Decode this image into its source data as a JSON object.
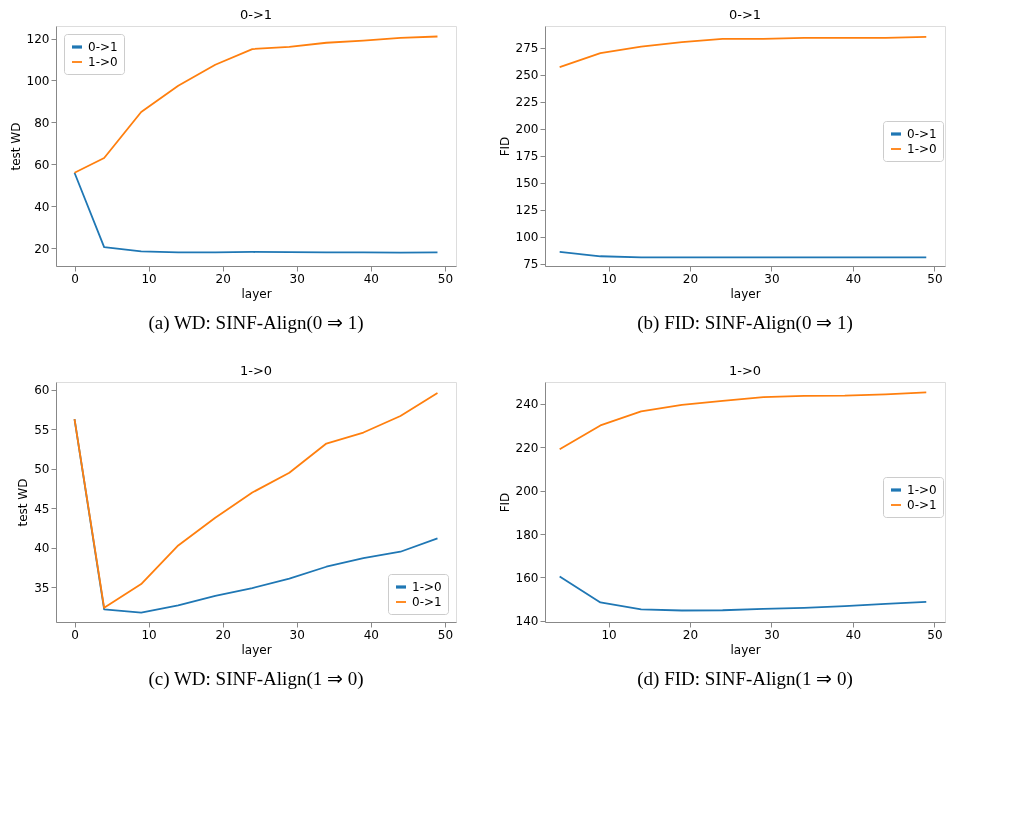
{
  "chart_data": [
    {
      "type": "line",
      "title": "0->1",
      "xlabel": "layer",
      "ylabel": "test WD",
      "xlim": [
        -2.5,
        51.5
      ],
      "ylim": [
        11.5,
        126
      ],
      "xticks": [
        0,
        10,
        20,
        30,
        40,
        50
      ],
      "yticks": [
        20,
        40,
        60,
        80,
        100,
        120
      ],
      "grid": false,
      "legend": "top left",
      "annotations": [
        "(a) WD: SINF-Align(0 ⇒ 1)"
      ],
      "series": [
        {
          "name": "0->1",
          "color": "#1f77b4",
          "x": [
            0,
            4,
            9,
            14,
            19,
            24,
            29,
            34,
            39,
            44,
            49
          ],
          "values": [
            56,
            20.5,
            18.5,
            18,
            18,
            18.2,
            18.1,
            18,
            18,
            17.9,
            18
          ]
        },
        {
          "name": "1->0",
          "color": "#ff7f0e",
          "x": [
            0,
            4,
            9,
            14,
            19,
            24,
            29,
            34,
            39,
            44,
            49
          ],
          "values": [
            56,
            63,
            85,
            97.5,
            107.5,
            115,
            116,
            118,
            119,
            120.3,
            121
          ]
        }
      ]
    },
    {
      "type": "line",
      "title": "0->1",
      "xlabel": "layer",
      "ylabel": "FID",
      "xlim": [
        2.2,
        51.3
      ],
      "ylim": [
        73,
        295
      ],
      "xticks": [
        10,
        20,
        30,
        40,
        50
      ],
      "yticks": [
        75,
        100,
        125,
        150,
        175,
        200,
        225,
        250,
        275
      ],
      "grid": false,
      "legend": "right",
      "annotations": [
        "(b) FID: SINF-Align(0 ⇒ 1)"
      ],
      "series": [
        {
          "name": "0->1",
          "color": "#1f77b4",
          "x": [
            4,
            9,
            14,
            19,
            24,
            29,
            34,
            39,
            44,
            49
          ],
          "values": [
            86,
            82,
            81,
            81,
            81,
            81,
            81,
            81,
            81,
            81
          ]
        },
        {
          "name": "1->0",
          "color": "#ff7f0e",
          "x": [
            4,
            9,
            14,
            19,
            24,
            29,
            34,
            39,
            44,
            49
          ],
          "values": [
            257,
            270,
            276,
            280,
            283,
            283,
            284,
            284,
            284,
            285
          ]
        }
      ]
    },
    {
      "type": "line",
      "title": "1->0",
      "xlabel": "layer",
      "ylabel": "test WD",
      "xlim": [
        -2.5,
        51.5
      ],
      "ylim": [
        30.6,
        61
      ],
      "xticks": [
        0,
        10,
        20,
        30,
        40,
        50
      ],
      "yticks": [
        35,
        40,
        45,
        50,
        55,
        60
      ],
      "grid": false,
      "legend": "bottom right",
      "annotations": [
        "(c) WD: SINF-Align(1 ⇒ 0)"
      ],
      "series": [
        {
          "name": "1->0",
          "color": "#1f77b4",
          "x": [
            0,
            4,
            9,
            14,
            19,
            24,
            29,
            34,
            39,
            44,
            49
          ],
          "values": [
            56.3,
            32.2,
            31.8,
            32.7,
            33.9,
            34.9,
            36.1,
            37.6,
            38.7,
            39.5,
            41.2
          ]
        },
        {
          "name": "0->1",
          "color": "#ff7f0e",
          "x": [
            0,
            4,
            9,
            14,
            19,
            24,
            29,
            34,
            39,
            44,
            49
          ],
          "values": [
            56.3,
            32.4,
            35.4,
            40.3,
            43.8,
            47,
            49.5,
            53.2,
            54.6,
            56.7,
            59.6
          ]
        }
      ]
    },
    {
      "type": "line",
      "title": "1->0",
      "xlabel": "layer",
      "ylabel": "FID",
      "xlim": [
        2.2,
        51.3
      ],
      "ylim": [
        139.5,
        250
      ],
      "xticks": [
        10,
        20,
        30,
        40,
        50
      ],
      "yticks": [
        140,
        160,
        180,
        200,
        220,
        240
      ],
      "grid": false,
      "legend": "right",
      "annotations": [
        "(d) FID: SINF-Align(1 ⇒ 0)"
      ],
      "series": [
        {
          "name": "1->0",
          "color": "#1f77b4",
          "x": [
            4,
            9,
            14,
            19,
            24,
            29,
            34,
            39,
            44,
            49
          ],
          "values": [
            160.5,
            148.5,
            145.3,
            144.8,
            144.9,
            145.5,
            146,
            146.8,
            147.8,
            148.8
          ]
        },
        {
          "name": "0->1",
          "color": "#ff7f0e",
          "x": [
            4,
            9,
            14,
            19,
            24,
            29,
            34,
            39,
            44,
            49
          ],
          "values": [
            219,
            230,
            236.5,
            239.5,
            241.3,
            243,
            243.6,
            243.7,
            244.3,
            245.2
          ]
        }
      ]
    }
  ]
}
